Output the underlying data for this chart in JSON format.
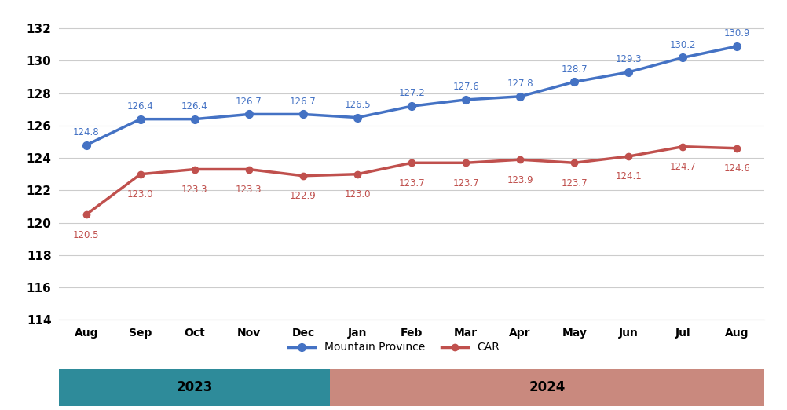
{
  "months": [
    "Aug",
    "Sep",
    "Oct",
    "Nov",
    "Dec",
    "Jan",
    "Feb",
    "Mar",
    "Apr",
    "May",
    "Jun",
    "Jul",
    "Aug"
  ],
  "mountain_province": [
    124.8,
    126.4,
    126.4,
    126.7,
    126.7,
    126.5,
    127.2,
    127.6,
    127.8,
    128.7,
    129.3,
    130.2,
    130.9
  ],
  "car": [
    120.5,
    123.0,
    123.3,
    123.3,
    122.9,
    123.0,
    123.7,
    123.7,
    123.9,
    123.7,
    124.1,
    124.7,
    124.6
  ],
  "mp_color": "#4472C4",
  "car_color": "#C0504D",
  "ylim_min": 114,
  "ylim_max": 133,
  "yticks": [
    114,
    116,
    118,
    120,
    122,
    124,
    126,
    128,
    130,
    132
  ],
  "bar_2023_color": "#2E8B9A",
  "bar_2024_color": "#C9897E",
  "bar_2023_label": "2023",
  "bar_2024_label": "2024",
  "legend_mp": "Mountain Province",
  "legend_car": "CAR",
  "background_color": "#FFFFFF",
  "plot_bg_color": "#FFFFFF",
  "ytick_fontsize": 11,
  "xtick_fontsize": 10,
  "label_fontsize": 8.5,
  "legend_fontsize": 10
}
